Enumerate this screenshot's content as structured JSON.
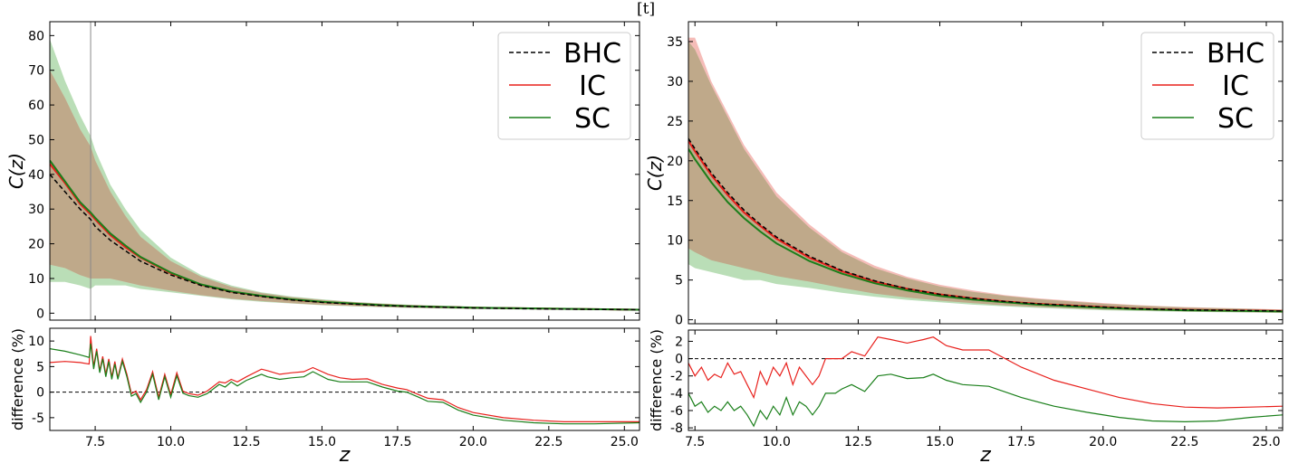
{
  "corner_label": "[t]",
  "colors": {
    "bhc": "#000000",
    "ic": "#e8201c",
    "sc": "#1a7f1a",
    "ic_band": "#f2a6a0",
    "sc_band": "#a9d6a5",
    "overlap": "#bfa98a"
  },
  "chart_data": [
    {
      "type": "line",
      "panel": "left",
      "ylabel": "C(z)",
      "xlim": [
        6.0,
        25.5
      ],
      "ylim": [
        -2,
        84
      ],
      "yticks": [
        0,
        10,
        20,
        30,
        40,
        50,
        60,
        70,
        80
      ],
      "vline_z": 7.35,
      "legend": {
        "position": "top-right",
        "entries": [
          "BHC",
          "IC",
          "SC"
        ]
      },
      "x": [
        6.0,
        6.5,
        7.0,
        7.35,
        7.5,
        8.0,
        8.5,
        9.0,
        10.0,
        11.0,
        12.0,
        13.0,
        14.0,
        15.0,
        16.0,
        17.0,
        18.0,
        20.0,
        22.5,
        25.5
      ],
      "series": [
        {
          "name": "BHC",
          "style": "dashed",
          "values": [
            40,
            35,
            30,
            27,
            25,
            21,
            18,
            15,
            11,
            8,
            6,
            4.8,
            3.8,
            3.1,
            2.6,
            2.2,
            1.9,
            1.5,
            1.2,
            1.0
          ]
        },
        {
          "name": "IC",
          "values": [
            43,
            37.5,
            31.5,
            28.5,
            27,
            22.5,
            19,
            16,
            11.5,
            8.2,
            6.2,
            4.9,
            3.9,
            3.2,
            2.7,
            2.3,
            2.0,
            1.6,
            1.3,
            1.0
          ]
        },
        {
          "name": "SC",
          "values": [
            44,
            38,
            32,
            29,
            27.5,
            23,
            19.5,
            16.2,
            11.7,
            8.3,
            6.3,
            5.0,
            4.0,
            3.3,
            2.8,
            2.3,
            2.0,
            1.6,
            1.3,
            1.0
          ]
        }
      ],
      "bands": [
        {
          "name": "SC",
          "upper": [
            79,
            67,
            57,
            51,
            47,
            37,
            30,
            24,
            16,
            11,
            8,
            6,
            4.8,
            4.0,
            3.3,
            2.8,
            2.4,
            1.9,
            1.5,
            1.2
          ],
          "lower": [
            9,
            9,
            8,
            7,
            8,
            8,
            8,
            7,
            6,
            5,
            4,
            3.3,
            2.8,
            2.3,
            2.0,
            1.7,
            1.5,
            1.2,
            1.0,
            0.8
          ]
        },
        {
          "name": "IC",
          "upper": [
            70,
            62,
            53,
            48,
            44,
            35,
            28,
            22,
            15,
            10.5,
            7.6,
            5.8,
            4.6,
            3.8,
            3.2,
            2.7,
            2.3,
            1.8,
            1.4,
            1.1
          ],
          "lower": [
            14,
            13,
            11,
            10,
            10,
            10,
            9,
            8,
            6.5,
            5.2,
            4.2,
            3.5,
            2.9,
            2.4,
            2.1,
            1.8,
            1.6,
            1.3,
            1.1,
            0.9
          ]
        }
      ],
      "xticks": [
        "7.5",
        "10.0",
        "12.5",
        "15.0",
        "17.5",
        "20.0",
        "22.5",
        "25.0"
      ]
    },
    {
      "type": "line",
      "panel": "left-bottom",
      "ylabel": "difference (%)",
      "xlabel": "z",
      "xlim": [
        6.0,
        25.5
      ],
      "ylim": [
        -7.5,
        12.5
      ],
      "yticks": [
        -5,
        0,
        5,
        10
      ],
      "hline": 0,
      "series": [
        {
          "name": "IC",
          "x": [
            6.0,
            6.5,
            7.0,
            7.3,
            7.35,
            7.45,
            7.55,
            7.65,
            7.75,
            7.85,
            7.95,
            8.05,
            8.15,
            8.25,
            8.4,
            8.55,
            8.7,
            8.85,
            9.0,
            9.2,
            9.4,
            9.6,
            9.8,
            10.0,
            10.2,
            10.4,
            10.6,
            10.9,
            11.2,
            11.6,
            11.8,
            12.0,
            12.2,
            12.5,
            13.0,
            13.2,
            13.6,
            14.0,
            14.4,
            14.7,
            15.2,
            15.6,
            16.0,
            16.5,
            17.0,
            17.5,
            17.8,
            18.2,
            18.5,
            19.0,
            19.5,
            20.0,
            21.0,
            22.0,
            23.0,
            24.0,
            25.5
          ],
          "values": [
            5.8,
            6.0,
            5.8,
            5.5,
            11.0,
            5.0,
            8.5,
            4.2,
            7.0,
            3.5,
            6.5,
            3.0,
            6.0,
            2.8,
            6.5,
            3.5,
            -0.3,
            0.2,
            -1.5,
            0.5,
            4.0,
            -1.0,
            3.5,
            -0.5,
            3.8,
            0.2,
            -0.3,
            -0.6,
            0.2,
            2.0,
            1.8,
            2.5,
            2.0,
            3.0,
            4.5,
            4.2,
            3.5,
            3.8,
            4.0,
            4.8,
            3.5,
            2.8,
            2.5,
            2.6,
            1.5,
            0.8,
            0.5,
            -0.5,
            -1.2,
            -1.5,
            -3.0,
            -4.0,
            -5.0,
            -5.5,
            -5.8,
            -5.8,
            -5.8
          ]
        },
        {
          "name": "SC",
          "x": [
            6.0,
            6.5,
            7.0,
            7.3,
            7.35,
            7.45,
            7.55,
            7.65,
            7.75,
            7.85,
            7.95,
            8.05,
            8.15,
            8.25,
            8.4,
            8.55,
            8.7,
            8.85,
            9.0,
            9.2,
            9.4,
            9.6,
            9.8,
            10.0,
            10.2,
            10.4,
            10.6,
            10.9,
            11.2,
            11.6,
            11.8,
            12.0,
            12.2,
            12.5,
            13.0,
            13.2,
            13.6,
            14.0,
            14.4,
            14.7,
            15.2,
            15.6,
            16.0,
            16.5,
            17.0,
            17.5,
            17.8,
            18.2,
            18.5,
            19.0,
            19.5,
            20.0,
            21.0,
            22.0,
            23.0,
            24.0,
            25.5
          ],
          "values": [
            8.5,
            8.0,
            7.3,
            6.8,
            9.5,
            4.5,
            8.0,
            3.8,
            6.5,
            3.0,
            6.0,
            2.5,
            5.5,
            2.5,
            6.0,
            3.0,
            -0.8,
            -0.3,
            -2.0,
            0.0,
            3.5,
            -1.5,
            3.0,
            -1.0,
            3.2,
            -0.2,
            -0.7,
            -1.0,
            -0.3,
            1.5,
            1.0,
            2.0,
            1.2,
            2.3,
            3.5,
            3.0,
            2.5,
            2.8,
            3.0,
            4.0,
            2.5,
            2.0,
            2.0,
            2.0,
            1.0,
            0.2,
            0.0,
            -1.0,
            -1.8,
            -2.0,
            -3.5,
            -4.5,
            -5.5,
            -6.0,
            -6.2,
            -6.2,
            -6.0
          ]
        }
      ]
    },
    {
      "type": "line",
      "panel": "right",
      "ylabel": "C(z)",
      "xlim": [
        7.3,
        25.5
      ],
      "ylim": [
        -0.5,
        37.5
      ],
      "yticks": [
        0,
        5,
        10,
        15,
        20,
        25,
        30,
        35
      ],
      "legend": {
        "position": "top-right",
        "entries": [
          "BHC",
          "IC",
          "SC"
        ]
      },
      "x": [
        7.3,
        7.5,
        8.0,
        8.5,
        9.0,
        9.5,
        10.0,
        11.0,
        12.0,
        13.0,
        14.0,
        15.0,
        16.0,
        17.0,
        18.0,
        19.0,
        20.0,
        21.0,
        22.5,
        25.5
      ],
      "series": [
        {
          "name": "BHC",
          "style": "dashed",
          "values": [
            22.8,
            21.5,
            18.5,
            16,
            13.8,
            12,
            10.4,
            8.0,
            6.2,
            4.9,
            3.9,
            3.2,
            2.7,
            2.3,
            2.0,
            1.8,
            1.6,
            1.4,
            1.25,
            1.1
          ]
        },
        {
          "name": "IC",
          "values": [
            22.5,
            21.2,
            18.2,
            15.7,
            13.5,
            11.8,
            10.2,
            7.8,
            6.1,
            4.8,
            3.9,
            3.2,
            2.7,
            2.3,
            2.0,
            1.8,
            1.6,
            1.4,
            1.25,
            1.1
          ]
        },
        {
          "name": "SC",
          "values": [
            21.5,
            20.2,
            17.3,
            14.8,
            12.8,
            11.1,
            9.6,
            7.4,
            5.8,
            4.6,
            3.7,
            3.0,
            2.55,
            2.2,
            1.9,
            1.7,
            1.5,
            1.35,
            1.2,
            1.05
          ]
        }
      ],
      "bands": [
        {
          "name": "IC",
          "upper": [
            35.5,
            35.5,
            30,
            26,
            22,
            19,
            16,
            12,
            8.8,
            6.8,
            5.4,
            4.4,
            3.7,
            3.1,
            2.7,
            2.4,
            2.1,
            1.85,
            1.6,
            1.3
          ],
          "lower": [
            9,
            8.5,
            7.5,
            7,
            6.5,
            6,
            5.5,
            4.8,
            4.0,
            3.3,
            2.8,
            2.4,
            2.1,
            1.8,
            1.6,
            1.45,
            1.3,
            1.2,
            1.05,
            0.9
          ]
        },
        {
          "name": "SC",
          "upper": [
            35,
            34,
            29.5,
            25.5,
            21.5,
            18.5,
            15.5,
            11.6,
            8.5,
            6.5,
            5.2,
            4.2,
            3.5,
            3.0,
            2.6,
            2.3,
            2.0,
            1.8,
            1.55,
            1.25
          ],
          "lower": [
            7,
            6.5,
            6,
            5.5,
            5.0,
            5.0,
            4.5,
            4.0,
            3.4,
            2.9,
            2.5,
            2.2,
            1.9,
            1.7,
            1.5,
            1.35,
            1.2,
            1.1,
            1.0,
            0.85
          ]
        }
      ],
      "xticks": [
        "7.5",
        "10.0",
        "12.5",
        "15.0",
        "17.5",
        "20.0",
        "22.5",
        "25.0"
      ]
    },
    {
      "type": "line",
      "panel": "right-bottom",
      "ylabel": "difference (%)",
      "xlabel": "z",
      "xlim": [
        7.3,
        25.5
      ],
      "ylim": [
        -8.3,
        3.3
      ],
      "yticks": [
        -8,
        -6,
        -4,
        -2,
        0,
        2
      ],
      "hline": 0,
      "series": [
        {
          "name": "IC",
          "x": [
            7.3,
            7.5,
            7.7,
            7.9,
            8.1,
            8.3,
            8.5,
            8.7,
            8.9,
            9.1,
            9.3,
            9.5,
            9.7,
            9.9,
            10.1,
            10.3,
            10.5,
            10.7,
            10.9,
            11.1,
            11.3,
            11.5,
            11.8,
            12.0,
            12.3,
            12.7,
            13.1,
            13.5,
            14.0,
            14.5,
            14.8,
            15.2,
            15.7,
            16.5,
            17.5,
            18.5,
            19.5,
            20.5,
            21.5,
            22.5,
            23.5,
            24.5,
            25.5
          ],
          "values": [
            -0.5,
            -2.0,
            -1.0,
            -2.5,
            -1.8,
            -2.2,
            -0.5,
            -1.8,
            -1.5,
            -3.0,
            -4.5,
            -1.5,
            -3.0,
            -1.0,
            -2.0,
            -0.5,
            -3.0,
            -1.0,
            -2.0,
            -3.0,
            -2.0,
            0.0,
            0.0,
            0.0,
            0.8,
            0.3,
            2.5,
            2.2,
            1.8,
            2.2,
            2.5,
            1.5,
            1.0,
            1.0,
            -1.0,
            -2.5,
            -3.5,
            -4.5,
            -5.2,
            -5.6,
            -5.7,
            -5.6,
            -5.5
          ]
        },
        {
          "name": "SC",
          "x": [
            7.3,
            7.5,
            7.7,
            7.9,
            8.1,
            8.3,
            8.5,
            8.7,
            8.9,
            9.1,
            9.3,
            9.5,
            9.7,
            9.9,
            10.1,
            10.3,
            10.5,
            10.7,
            10.9,
            11.1,
            11.3,
            11.5,
            11.8,
            12.0,
            12.3,
            12.7,
            13.1,
            13.5,
            14.0,
            14.5,
            14.8,
            15.2,
            15.7,
            16.5,
            17.5,
            18.5,
            19.5,
            20.5,
            21.5,
            22.5,
            23.5,
            24.5,
            25.5
          ],
          "values": [
            -4.0,
            -5.5,
            -5.0,
            -6.2,
            -5.5,
            -6.0,
            -5.0,
            -6.0,
            -5.5,
            -6.5,
            -7.8,
            -6.0,
            -7.0,
            -5.5,
            -6.5,
            -4.5,
            -6.5,
            -5.0,
            -5.5,
            -6.5,
            -5.5,
            -4.0,
            -4.0,
            -3.5,
            -3.0,
            -3.8,
            -2.0,
            -1.8,
            -2.3,
            -2.2,
            -1.8,
            -2.5,
            -3.0,
            -3.2,
            -4.5,
            -5.5,
            -6.2,
            -6.8,
            -7.2,
            -7.3,
            -7.2,
            -6.8,
            -6.5
          ]
        }
      ]
    }
  ]
}
